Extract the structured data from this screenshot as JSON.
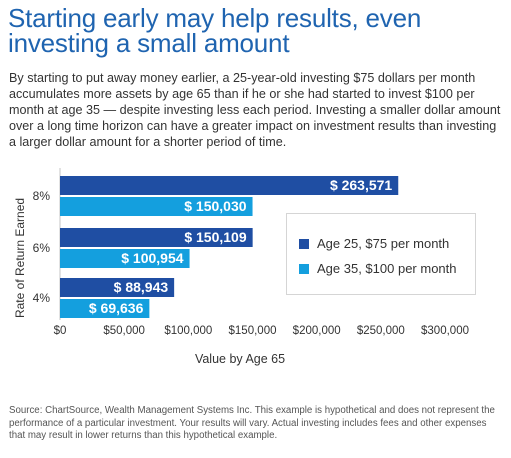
{
  "header": {
    "title": "Starting early may help results, even investing a small amount",
    "description": "By starting to put away money earlier, a 25-year-old investing $75 dollars per month accumulates more assets by age 65 than if he or she had started to invest $100 per month at age 35 — despite investing less each period. Investing a smaller dollar amount over a long time horizon can have a greater impact on investment results than investing a larger dollar amount for a shorter period of time."
  },
  "footer": {
    "source": "Source: ChartSource, Wealth Management Systems Inc. This example is hypothetical and does not represent the performance of a particular investment. Your results will vary. Actual investing includes fees and other expenses that may result in lower returns than this hypothetical example."
  },
  "chart_data": {
    "type": "bar",
    "orientation": "horizontal",
    "title": "",
    "xlabel": "Value by Age 65",
    "ylabel": "Rate of Return Earned",
    "categories": [
      "8%",
      "6%",
      "4%"
    ],
    "series": [
      {
        "name": "Age 25, $75 per month",
        "values": [
          263571,
          150109,
          88943
        ],
        "labels": [
          "$ 263,571",
          "$ 150,109",
          "$ 88,943"
        ],
        "color": "#1f4ea3"
      },
      {
        "name": "Age 35, $100 per month",
        "values": [
          150030,
          100954,
          69636
        ],
        "labels": [
          "$ 150,030",
          "$ 100,954",
          "$ 69,636"
        ],
        "color": "#149fde"
      }
    ],
    "xlim": [
      0,
      300000
    ],
    "xticks": [
      0,
      50000,
      100000,
      150000,
      200000,
      250000,
      300000
    ],
    "xtick_labels": [
      "$0",
      "$50,000",
      "$100,000",
      "$150,000",
      "$200,000",
      "$250,000",
      "$300,000"
    ],
    "grid": false,
    "legend": "right"
  }
}
